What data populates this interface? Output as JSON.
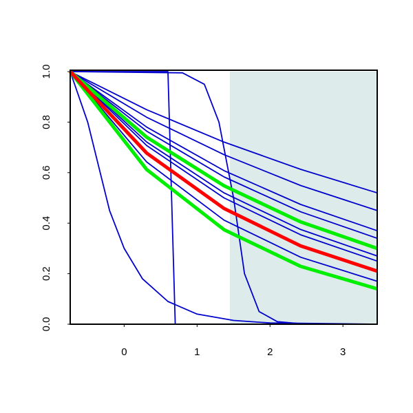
{
  "chart_data": {
    "type": "line",
    "xlim": [
      -0.74,
      3.47
    ],
    "ylim": [
      0,
      1
    ],
    "xticks": [
      0,
      1,
      2,
      3
    ],
    "yticks": [
      {
        "value": 0,
        "label": "0.0"
      },
      0.2,
      0.4,
      0.6,
      0.8,
      {
        "value": 1,
        "label": "1.0"
      }
    ],
    "shaded_xrange": [
      1.45,
      3.47
    ],
    "shade_color": "#deebeb",
    "series": [
      {
        "color": "#0000cd",
        "x": [
          -0.74,
          0.31,
          1.37,
          2.42,
          3.47
        ],
        "values": [
          1,
          0.849,
          0.721,
          0.613,
          0.52
        ]
      },
      {
        "color": "#0000cd",
        "x": [
          -0.74,
          0.31,
          1.37,
          2.42,
          3.47
        ],
        "values": [
          1,
          0.819,
          0.671,
          0.549,
          0.45
        ]
      },
      {
        "color": "#0000cd",
        "x": [
          -0.74,
          0.31,
          1.37,
          2.42,
          3.47
        ],
        "values": [
          1,
          0.78,
          0.608,
          0.474,
          0.37
        ]
      },
      {
        "color": "#0000cd",
        "x": [
          -0.74,
          0.31,
          1.37,
          2.42,
          3.47
        ],
        "values": [
          1,
          0.764,
          0.583,
          0.445,
          0.34
        ]
      },
      {
        "color": "#0000cd",
        "x": [
          -0.74,
          0.31,
          1.37,
          2.42,
          3.47
        ],
        "values": [
          1,
          0.721,
          0.52,
          0.375,
          0.27
        ]
      },
      {
        "color": "#0000cd",
        "x": [
          -0.74,
          0.31,
          1.37,
          2.42,
          3.47
        ],
        "values": [
          1,
          0.707,
          0.5,
          0.354,
          0.25
        ]
      },
      {
        "color": "#0000cd",
        "x": [
          -0.74,
          0.31,
          1.37,
          2.42,
          3.47
        ],
        "values": [
          1,
          0.642,
          0.412,
          0.265,
          0.17
        ]
      },
      {
        "color": "#0000cd",
        "x": [
          -0.74,
          0.6,
          0.65,
          0.7,
          3.47
        ],
        "values": [
          1,
          1,
          0.5,
          0,
          0
        ]
      },
      {
        "color": "#0000cd",
        "x": [
          -0.74,
          0.8,
          1.1,
          1.3,
          1.5,
          1.65,
          1.85,
          2.1,
          2.5,
          3.47
        ],
        "values": [
          1,
          0.995,
          0.95,
          0.8,
          0.5,
          0.2,
          0.05,
          0.01,
          0,
          0
        ]
      },
      {
        "color": "#0000cd",
        "x": [
          -0.74,
          -0.5,
          -0.2,
          0,
          0.25,
          0.6,
          1,
          1.5,
          2,
          3.47
        ],
        "values": [
          1,
          0.8,
          0.45,
          0.3,
          0.18,
          0.09,
          0.04,
          0.015,
          0.005,
          0
        ]
      },
      {
        "color": "#00ee00",
        "x": [
          -0.74,
          0.31,
          1.37,
          2.42,
          3.47
        ],
        "values": [
          1,
          0.74,
          0.548,
          0.405,
          0.3
        ]
      },
      {
        "color": "#00ee00",
        "x": [
          -0.74,
          0.31,
          1.37,
          2.42,
          3.47
        ],
        "values": [
          1,
          0.612,
          0.374,
          0.229,
          0.14
        ]
      },
      {
        "color": "#ff0000",
        "x": [
          -0.74,
          0.31,
          1.37,
          2.42,
          3.47
        ],
        "values": [
          1,
          0.677,
          0.458,
          0.31,
          0.21
        ]
      }
    ]
  }
}
